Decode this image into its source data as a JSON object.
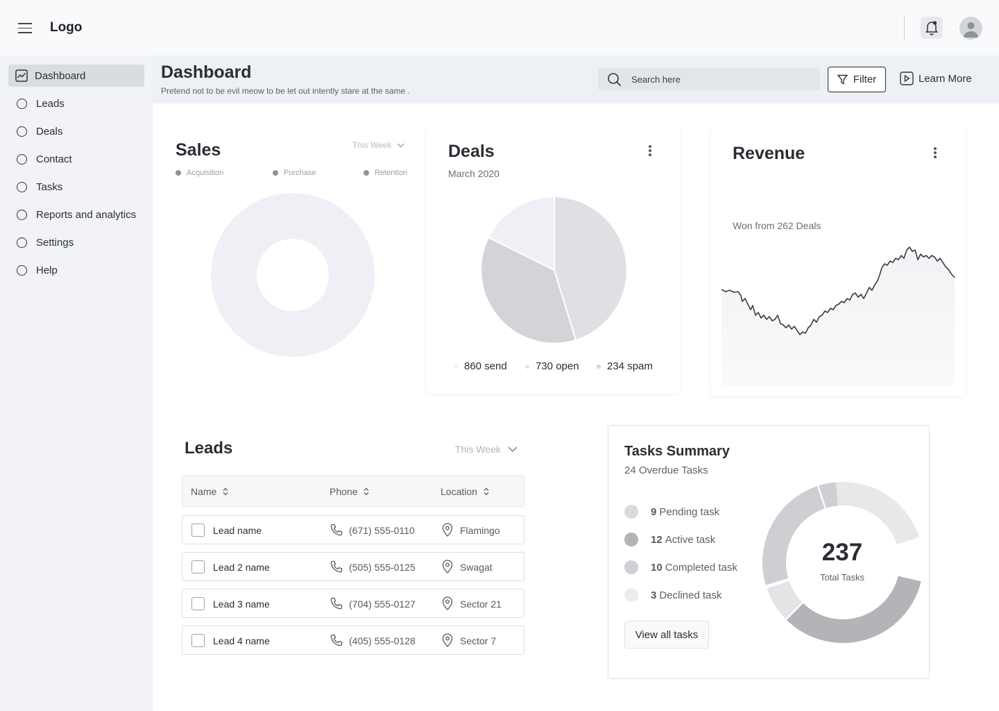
{
  "topbar": {
    "logo": "Logo",
    "icons": [
      "menu-icon",
      "bell-icon",
      "avatar"
    ]
  },
  "sidebar": {
    "items": [
      {
        "label": "Dashboard",
        "active": true,
        "icon": "chart-icon"
      },
      {
        "label": "Leads",
        "active": false,
        "icon": "circle-icon"
      },
      {
        "label": "Deals",
        "active": false,
        "icon": "circle-icon"
      },
      {
        "label": "Contact",
        "active": false,
        "icon": "circle-icon"
      },
      {
        "label": "Tasks",
        "active": false,
        "icon": "circle-icon"
      },
      {
        "label": "Reports and analytics",
        "active": false,
        "icon": "circle-icon"
      },
      {
        "label": "Settings",
        "active": false,
        "icon": "circle-icon"
      },
      {
        "label": "Help",
        "active": false,
        "icon": "circle-icon"
      }
    ]
  },
  "header": {
    "title": "Dashboard",
    "subtitle": "Pretend not to be evil meow to be let out intently stare at the same .",
    "search_placeholder": "Search here",
    "filter_label": "Filter",
    "learn_more_label": "Learn More"
  },
  "sales": {
    "title": "Sales",
    "period": "This Week",
    "legend": [
      "Acquisition",
      "Purchase",
      "Retention"
    ]
  },
  "deals": {
    "title": "Deals",
    "subtitle": "March 2020",
    "legend": [
      {
        "label": "860 send",
        "color": "#ecedef"
      },
      {
        "label": "730 open",
        "color": "#e1e3e6"
      },
      {
        "label": "234 spam",
        "color": "#d0d2d5"
      }
    ]
  },
  "revenue": {
    "title": "Revenue",
    "subtitle": "Won from 262 Deals"
  },
  "leads": {
    "title": "Leads",
    "period": "This Week",
    "columns": [
      "Name",
      "Phone",
      "Location"
    ],
    "rows": [
      {
        "name": "Lead name",
        "phone": "(671) 555-0110",
        "location": "Flamingo"
      },
      {
        "name": "Lead 2 name",
        "phone": "(505) 555-0125",
        "location": "Swagat"
      },
      {
        "name": "Lead 3 name",
        "phone": "(704) 555-0127",
        "location": "Sector 21"
      },
      {
        "name": "Lead 4 name",
        "phone": "(405) 555-0128",
        "location": "Sector 7"
      }
    ]
  },
  "tasks": {
    "title": "Tasks Summary",
    "subtitle": "24 Overdue Tasks",
    "items": [
      {
        "count": "9",
        "label": "Pending task",
        "color": "#d9dadd"
      },
      {
        "count": "12",
        "label": "Active task",
        "color": "#b2b4b8"
      },
      {
        "count": "10",
        "label": "Completed task",
        "color": "#cfd1d4"
      },
      {
        "count": "3",
        "label": "Declined task",
        "color": "#ebecee"
      }
    ],
    "view_all_label": "View all tasks",
    "total": "237",
    "total_label": "Total Tasks"
  }
}
